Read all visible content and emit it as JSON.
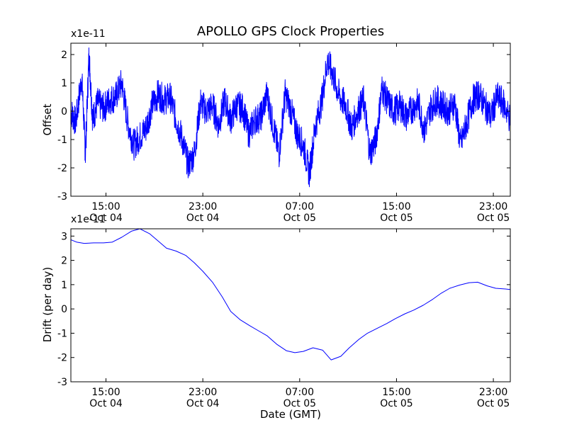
{
  "figure": {
    "title": "APOLLO GPS Clock Properties",
    "xlabel": "Date (GMT)"
  },
  "x_ticks": [
    {
      "time": "15:00",
      "date": "Oct 04",
      "hours": 15
    },
    {
      "time": "23:00",
      "date": "Oct 04",
      "hours": 23
    },
    {
      "time": "07:00",
      "date": "Oct 05",
      "hours": 31
    },
    {
      "time": "15:00",
      "date": "Oct 05",
      "hours": 39
    },
    {
      "time": "23:00",
      "date": "Oct 05",
      "hours": 47
    }
  ],
  "chart_data": [
    {
      "type": "line",
      "title": "APOLLO GPS Clock Properties",
      "ylabel": "Offset",
      "yscale_label": "x1e-11",
      "ylim": [
        -3,
        2.4
      ],
      "yticks": [
        -3,
        -2,
        -1,
        0,
        1,
        2
      ],
      "x_range_hours": [
        12.1,
        48.4
      ],
      "x_axis_reference": "Oct 04 00:00 GMT",
      "grid": false,
      "color": "#0000ff",
      "series": [
        {
          "x_hours": [
            12.1,
            12.5,
            13.0,
            13.3,
            13.6,
            13.9,
            14.3,
            14.8,
            15.3,
            15.8,
            16.3,
            16.8,
            17.3,
            17.8,
            18.3,
            18.8,
            19.3,
            19.8,
            20.3,
            20.8,
            21.3,
            21.8,
            22.3,
            22.8,
            23.3,
            23.8,
            24.3,
            24.8,
            25.3,
            25.8,
            26.3,
            26.8,
            27.3,
            27.8,
            28.3,
            28.8,
            29.3,
            29.8,
            30.3,
            30.8,
            31.3,
            31.8,
            32.3,
            32.8,
            33.3,
            33.8,
            34.3,
            34.8,
            35.3,
            35.8,
            36.3,
            36.8,
            37.3,
            37.8,
            38.3,
            38.8,
            39.3,
            39.8,
            40.3,
            40.8,
            41.3,
            41.8,
            42.3,
            42.8,
            43.3,
            43.8,
            44.3,
            44.8,
            45.3,
            45.8,
            46.3,
            46.8,
            47.3,
            47.8,
            48.4
          ],
          "values": [
            0.0,
            -0.4,
            1.2,
            -1.5,
            2.0,
            -0.3,
            0.3,
            0.1,
            0.4,
            0.5,
            1.0,
            -0.4,
            -1.2,
            -0.9,
            -0.6,
            0.2,
            0.6,
            0.4,
            0.5,
            -0.3,
            -1.0,
            -1.9,
            -1.5,
            0.3,
            0.0,
            0.2,
            -0.5,
            0.4,
            -0.3,
            0.2,
            0.1,
            -0.8,
            -0.3,
            -0.2,
            0.6,
            -0.5,
            -1.5,
            0.6,
            0.0,
            -0.8,
            -1.2,
            -2.2,
            -0.5,
            0.3,
            1.8,
            1.2,
            0.5,
            0.2,
            -0.6,
            0.0,
            0.4,
            -1.5,
            -1.0,
            0.8,
            0.3,
            0.0,
            0.2,
            -0.2,
            0.1,
            0.3,
            -0.7,
            0.1,
            0.4,
            0.2,
            0.0,
            0.3,
            -1.2,
            -0.4,
            0.4,
            0.6,
            0.2,
            -0.2,
            0.5,
            0.3,
            -0.3
          ]
        }
      ]
    },
    {
      "type": "line",
      "ylabel": "Drift (per day)",
      "yscale_label": "x1e-11",
      "xlabel": "Date (GMT)",
      "ylim": [
        -3,
        3.3
      ],
      "yticks": [
        -3,
        -2,
        -1,
        0,
        1,
        2,
        3
      ],
      "x_range_hours": [
        12.1,
        48.4
      ],
      "x_axis_reference": "Oct 04 00:00 GMT",
      "grid": false,
      "color": "#0000ff",
      "series": [
        {
          "x_hours": [
            12.1,
            12.6,
            13.2,
            14.0,
            14.8,
            15.5,
            16.3,
            17.1,
            17.8,
            18.6,
            19.3,
            20.0,
            20.8,
            21.6,
            22.3,
            23.0,
            23.8,
            24.6,
            25.3,
            26.1,
            26.9,
            27.6,
            28.3,
            29.1,
            29.9,
            30.6,
            31.3,
            32.1,
            32.9,
            33.6,
            34.4,
            35.1,
            35.9,
            36.6,
            37.4,
            38.2,
            38.9,
            39.7,
            40.4,
            41.2,
            42.0,
            42.7,
            43.4,
            44.2,
            45.0,
            45.7,
            46.5,
            47.2,
            48.0,
            48.4
          ],
          "values": [
            2.85,
            2.75,
            2.7,
            2.72,
            2.72,
            2.75,
            2.95,
            3.2,
            3.3,
            3.1,
            2.8,
            2.5,
            2.38,
            2.2,
            1.9,
            1.55,
            1.1,
            0.5,
            -0.1,
            -0.45,
            -0.7,
            -0.9,
            -1.1,
            -1.45,
            -1.72,
            -1.8,
            -1.75,
            -1.6,
            -1.7,
            -2.1,
            -1.95,
            -1.6,
            -1.25,
            -1.0,
            -0.8,
            -0.6,
            -0.4,
            -0.2,
            -0.05,
            0.15,
            0.4,
            0.65,
            0.85,
            0.98,
            1.08,
            1.1,
            0.95,
            0.85,
            0.82,
            0.8
          ]
        }
      ]
    }
  ]
}
